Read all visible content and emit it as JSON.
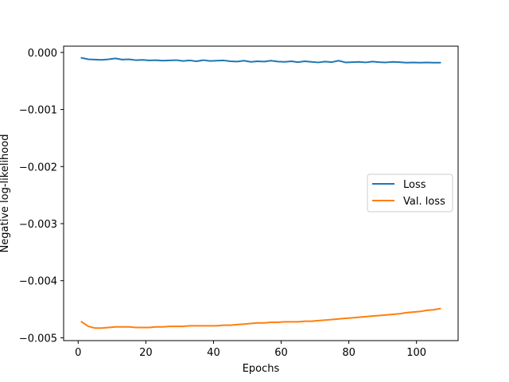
{
  "chart_data": {
    "type": "line",
    "title": "",
    "xlabel": "Epochs",
    "ylabel": "Negative log-likelihood",
    "xlim": [
      -4.3,
      112.3
    ],
    "ylim": [
      -0.00505,
      0.00011
    ],
    "xticks": [
      0,
      20,
      40,
      60,
      80,
      100
    ],
    "xtick_labels": [
      "0",
      "20",
      "40",
      "60",
      "80",
      "100"
    ],
    "yticks": [
      0.0,
      -0.001,
      -0.002,
      -0.003,
      -0.004,
      -0.005
    ],
    "ytick_labels": [
      "0.000",
      "−0.001",
      "−0.002",
      "−0.003",
      "−0.004",
      "−0.005"
    ],
    "grid": false,
    "legend_position": "center-right",
    "x": [
      1,
      3,
      5,
      7,
      9,
      11,
      13,
      15,
      17,
      19,
      21,
      23,
      25,
      27,
      29,
      31,
      33,
      35,
      37,
      39,
      41,
      43,
      45,
      47,
      49,
      51,
      53,
      55,
      57,
      59,
      61,
      63,
      65,
      67,
      69,
      71,
      73,
      75,
      77,
      79,
      81,
      83,
      85,
      87,
      89,
      91,
      93,
      95,
      97,
      99,
      101,
      103,
      105,
      107
    ],
    "series": [
      {
        "name": "Loss",
        "color": "#1f77b4",
        "values": [
          -9.5e-05,
          -0.00012,
          -0.000125,
          -0.00013,
          -0.00012,
          -0.000105,
          -0.000125,
          -0.00012,
          -0.000135,
          -0.00013,
          -0.00014,
          -0.000135,
          -0.000145,
          -0.00014,
          -0.000135,
          -0.00015,
          -0.00014,
          -0.000155,
          -0.000135,
          -0.00015,
          -0.000145,
          -0.00014,
          -0.000155,
          -0.00016,
          -0.000145,
          -0.000165,
          -0.000155,
          -0.00016,
          -0.000145,
          -0.00016,
          -0.000165,
          -0.000155,
          -0.00017,
          -0.000155,
          -0.000165,
          -0.000175,
          -0.00016,
          -0.00017,
          -0.000145,
          -0.000175,
          -0.00017,
          -0.000165,
          -0.000175,
          -0.00016,
          -0.00017,
          -0.000175,
          -0.000165,
          -0.00017,
          -0.00018,
          -0.000175,
          -0.00018,
          -0.000175,
          -0.00018,
          -0.00018
        ]
      },
      {
        "name": "Val. loss",
        "color": "#ff7f0e",
        "values": [
          -0.00472,
          -0.0048,
          -0.00483,
          -0.00483,
          -0.00482,
          -0.00481,
          -0.00481,
          -0.00481,
          -0.00482,
          -0.00482,
          -0.00482,
          -0.00481,
          -0.00481,
          -0.0048,
          -0.0048,
          -0.0048,
          -0.00479,
          -0.00479,
          -0.00479,
          -0.00479,
          -0.00479,
          -0.00478,
          -0.00478,
          -0.00477,
          -0.00476,
          -0.00475,
          -0.00474,
          -0.00474,
          -0.00473,
          -0.00473,
          -0.00472,
          -0.00472,
          -0.00472,
          -0.00471,
          -0.00471,
          -0.0047,
          -0.00469,
          -0.00468,
          -0.00467,
          -0.00466,
          -0.00465,
          -0.00464,
          -0.00463,
          -0.00462,
          -0.00461,
          -0.0046,
          -0.00459,
          -0.00458,
          -0.00456,
          -0.00455,
          -0.00454,
          -0.00452,
          -0.00451,
          -0.00449
        ]
      }
    ]
  }
}
